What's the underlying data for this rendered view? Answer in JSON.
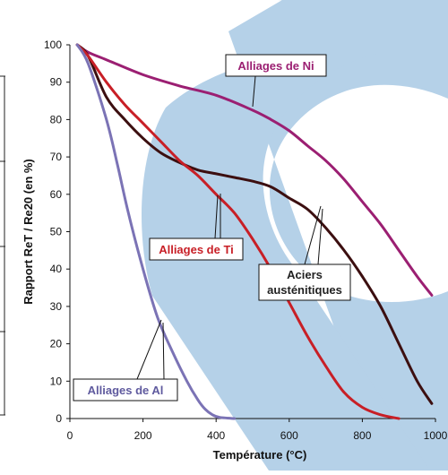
{
  "chart_data": {
    "type": "line",
    "title": "",
    "xlabel": "Température (°C)",
    "ylabel": "Rapport ReT / Re20 (en %)",
    "xlim": [
      0,
      1000
    ],
    "ylim": [
      0,
      100
    ],
    "xticks": [
      0,
      200,
      400,
      600,
      800,
      1000
    ],
    "yticks": [
      0,
      10,
      20,
      30,
      40,
      50,
      60,
      70,
      80,
      90,
      100
    ],
    "grid": false,
    "legend": "none",
    "series": [
      {
        "name": "Alliages de Ni",
        "color": "#9b1f72",
        "x": [
          20,
          50,
          100,
          200,
          300,
          400,
          500,
          550,
          600,
          650,
          700,
          750,
          800,
          850,
          900,
          950,
          990
        ],
        "y": [
          100,
          98,
          96,
          92,
          89,
          86.5,
          82.5,
          80,
          77,
          73,
          69,
          64,
          58,
          52,
          45,
          38,
          33
        ]
      },
      {
        "name": "Aciers austénitiques",
        "color": "#3c0f10",
        "x": [
          20,
          50,
          100,
          150,
          200,
          250,
          300,
          350,
          400,
          450,
          500,
          550,
          600,
          650,
          700,
          750,
          800,
          850,
          900,
          950,
          990
        ],
        "y": [
          100,
          97,
          86,
          80,
          75,
          71,
          68.5,
          66.5,
          65.5,
          64.5,
          63.5,
          62,
          59,
          56,
          51,
          45,
          38,
          30,
          20,
          10,
          4
        ]
      },
      {
        "name": "Alliages de Ti",
        "color": "#c81f26",
        "x": [
          20,
          50,
          100,
          150,
          200,
          250,
          300,
          350,
          400,
          450,
          500,
          550,
          600,
          650,
          700,
          750,
          800,
          850,
          900
        ],
        "y": [
          100,
          97,
          90,
          84,
          79,
          74,
          69,
          65,
          60,
          55,
          48,
          40,
          31,
          22,
          14,
          7,
          3,
          1,
          0
        ]
      },
      {
        "name": "Alliages de Al",
        "color": "#7b73b5",
        "x": [
          20,
          50,
          100,
          130,
          160,
          200,
          240,
          280,
          320,
          350,
          370,
          390,
          410,
          450
        ],
        "y": [
          100,
          95,
          80,
          68,
          55,
          40,
          27,
          18,
          10,
          5,
          2.5,
          1,
          0.3,
          0
        ]
      }
    ],
    "annotations": [
      {
        "text": "Alliages de Ni",
        "target_series": "Alliages de Ni"
      },
      {
        "text": "Aciers austénitiques",
        "target_series": "Aciers austénitiques"
      },
      {
        "text": "Alliages de Ti",
        "target_series": "Alliages de Ti"
      },
      {
        "text": "Alliages de Al",
        "target_series": "Alliages de Al"
      }
    ]
  }
}
